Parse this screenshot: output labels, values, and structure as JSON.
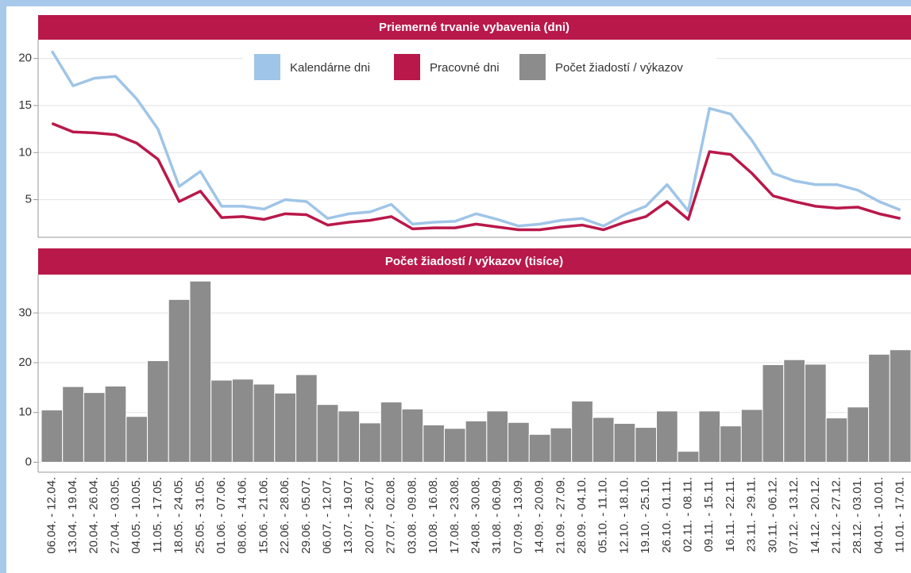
{
  "chart_data": [
    {
      "type": "line",
      "title": "Priemerné trvanie vybavenia (dni)",
      "ylim": [
        1,
        22
      ],
      "yticks": [
        5,
        10,
        15,
        20
      ],
      "grid": true,
      "series": [
        {
          "name": "Kalendárne dni",
          "color": "#9fc5e8",
          "values": [
            20.8,
            17.1,
            17.9,
            18.1,
            15.7,
            12.5,
            6.4,
            8.0,
            4.3,
            4.3,
            4.0,
            5.0,
            4.8,
            3.0,
            3.5,
            3.7,
            4.5,
            2.4,
            2.6,
            2.7,
            3.5,
            2.9,
            2.2,
            2.4,
            2.8,
            3.0,
            2.2,
            3.4,
            4.3,
            6.6,
            3.8,
            14.7,
            14.1,
            11.3,
            7.8,
            7.0,
            6.6,
            6.6,
            6.0,
            4.8,
            3.9
          ]
        },
        {
          "name": "Pracovné dni",
          "color": "#b9184a",
          "values": [
            13.1,
            12.2,
            12.1,
            11.9,
            11.0,
            9.3,
            4.8,
            5.9,
            3.1,
            3.2,
            2.9,
            3.5,
            3.4,
            2.3,
            2.6,
            2.8,
            3.2,
            1.9,
            2.0,
            2.0,
            2.4,
            2.1,
            1.8,
            1.8,
            2.1,
            2.3,
            1.8,
            2.6,
            3.2,
            4.8,
            2.9,
            10.1,
            9.8,
            7.8,
            5.4,
            4.8,
            4.3,
            4.1,
            4.2,
            3.5,
            3.0
          ]
        }
      ]
    },
    {
      "type": "bar",
      "title": "Počet žiadostí / výkazov (tisíce)",
      "ylim": [
        -2,
        37.7
      ],
      "yticks": [
        0,
        10,
        20,
        30
      ],
      "grid": true,
      "categories": [
        "06.04. - 12.04.",
        "13.04. - 19.04.",
        "20.04. - 26.04.",
        "27.04. - 03.05.",
        "04.05. - 10.05.",
        "11.05. - 17.05.",
        "18.05. - 24.05.",
        "25.05. - 31.05.",
        "01.06. - 07.06.",
        "08.06. - 14.06.",
        "15.06. - 21.06.",
        "22.06. - 28.06.",
        "29.06. - 05.07.",
        "06.07. - 12.07.",
        "13.07. - 19.07.",
        "20.07. - 26.07.",
        "27.07. - 02.08.",
        "03.08. - 09.08.",
        "10.08. - 16.08.",
        "17.08. - 23.08.",
        "24.08. - 30.08.",
        "31.08. - 06.09.",
        "07.09. - 13.09.",
        "14.09. - 20.09.",
        "21.09. - 27.09.",
        "28.09. - 04.10.",
        "05.10. - 11.10.",
        "12.10. - 18.10.",
        "19.10. - 25.10.",
        "26.10. - 01.11.",
        "02.11. - 08.11.",
        "09.11. - 15.11.",
        "16.11. - 22.11.",
        "23.11. - 29.11.",
        "30.11. - 06.12.",
        "07.12. - 13.12.",
        "14.12. - 20.12.",
        "21.12. - 27.12.",
        "28.12. - 03.01.",
        "04.01. - 10.01.",
        "11.01. - 17.01."
      ],
      "series": [
        {
          "name": "Počet žiadostí / výkazov",
          "color": "#8c8c8c",
          "values": [
            10.5,
            15.2,
            14.0,
            15.3,
            9.2,
            20.4,
            32.7,
            36.4,
            16.5,
            16.7,
            15.7,
            13.9,
            17.6,
            11.6,
            10.3,
            7.9,
            12.1,
            10.7,
            7.5,
            6.8,
            8.3,
            10.3,
            8.0,
            5.6,
            6.9,
            12.3,
            9.0,
            7.8,
            7.0,
            10.3,
            2.2,
            10.3,
            7.3,
            10.6,
            19.6,
            20.6,
            19.7,
            8.9,
            11.1,
            21.7,
            22.6
          ]
        }
      ]
    }
  ]
}
